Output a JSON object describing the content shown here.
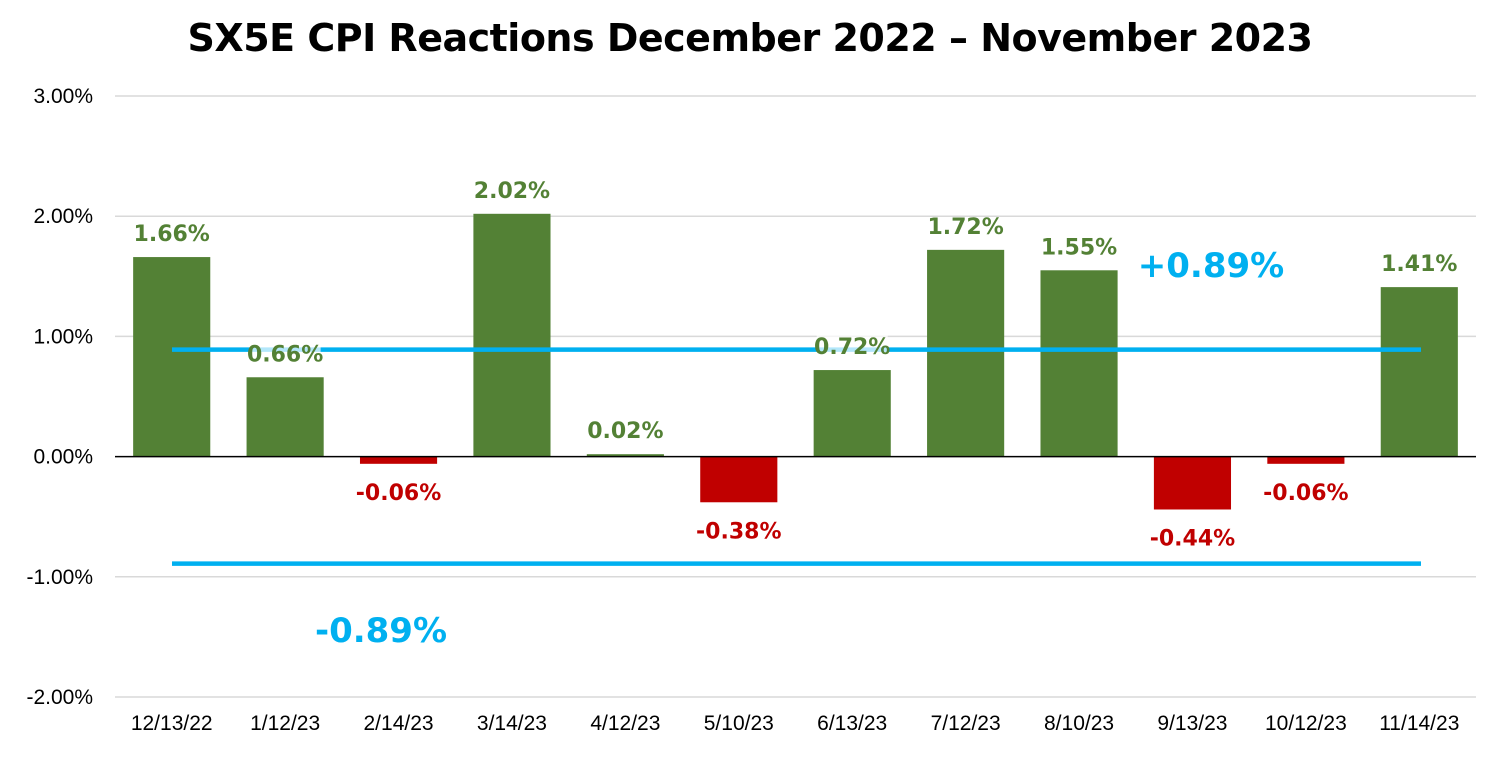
{
  "chart_data": {
    "type": "bar",
    "title": "SX5E CPI Reactions December 2022 – November 2023",
    "xlabel": "",
    "ylabel": "",
    "categories": [
      "12/13/22",
      "1/12/23",
      "2/14/23",
      "3/14/23",
      "4/12/23",
      "5/10/23",
      "6/13/23",
      "7/12/23",
      "8/10/23",
      "9/13/23",
      "10/12/23",
      "11/14/23"
    ],
    "values": [
      1.66,
      0.66,
      -0.06,
      2.02,
      0.02,
      -0.38,
      0.72,
      1.72,
      1.55,
      -0.44,
      -0.06,
      1.41
    ],
    "data_labels": [
      "1.66%",
      "0.66%",
      "-0.06%",
      "2.02%",
      "0.02%",
      "-0.38%",
      "0.72%",
      "1.72%",
      "1.55%",
      "-0.44%",
      "-0.06%",
      "1.41%"
    ],
    "ylim": [
      -2,
      3
    ],
    "yticks": [
      3,
      2,
      1,
      0,
      -1,
      -2
    ],
    "ytick_labels": [
      "3.00%",
      "2.00%",
      "1.00%",
      "0.00%",
      "-1.00%",
      "-2.00%"
    ],
    "grid": true,
    "legend": "none",
    "reference_lines": [
      {
        "value": 0.89,
        "label": "+0.89%"
      },
      {
        "value": -0.89,
        "label": "-0.89%"
      }
    ],
    "colors": {
      "positive": "#538135",
      "negative": "#C00000",
      "reference": "#00B0F0",
      "grid": "#D9D9D9",
      "axis": "#000000"
    }
  }
}
